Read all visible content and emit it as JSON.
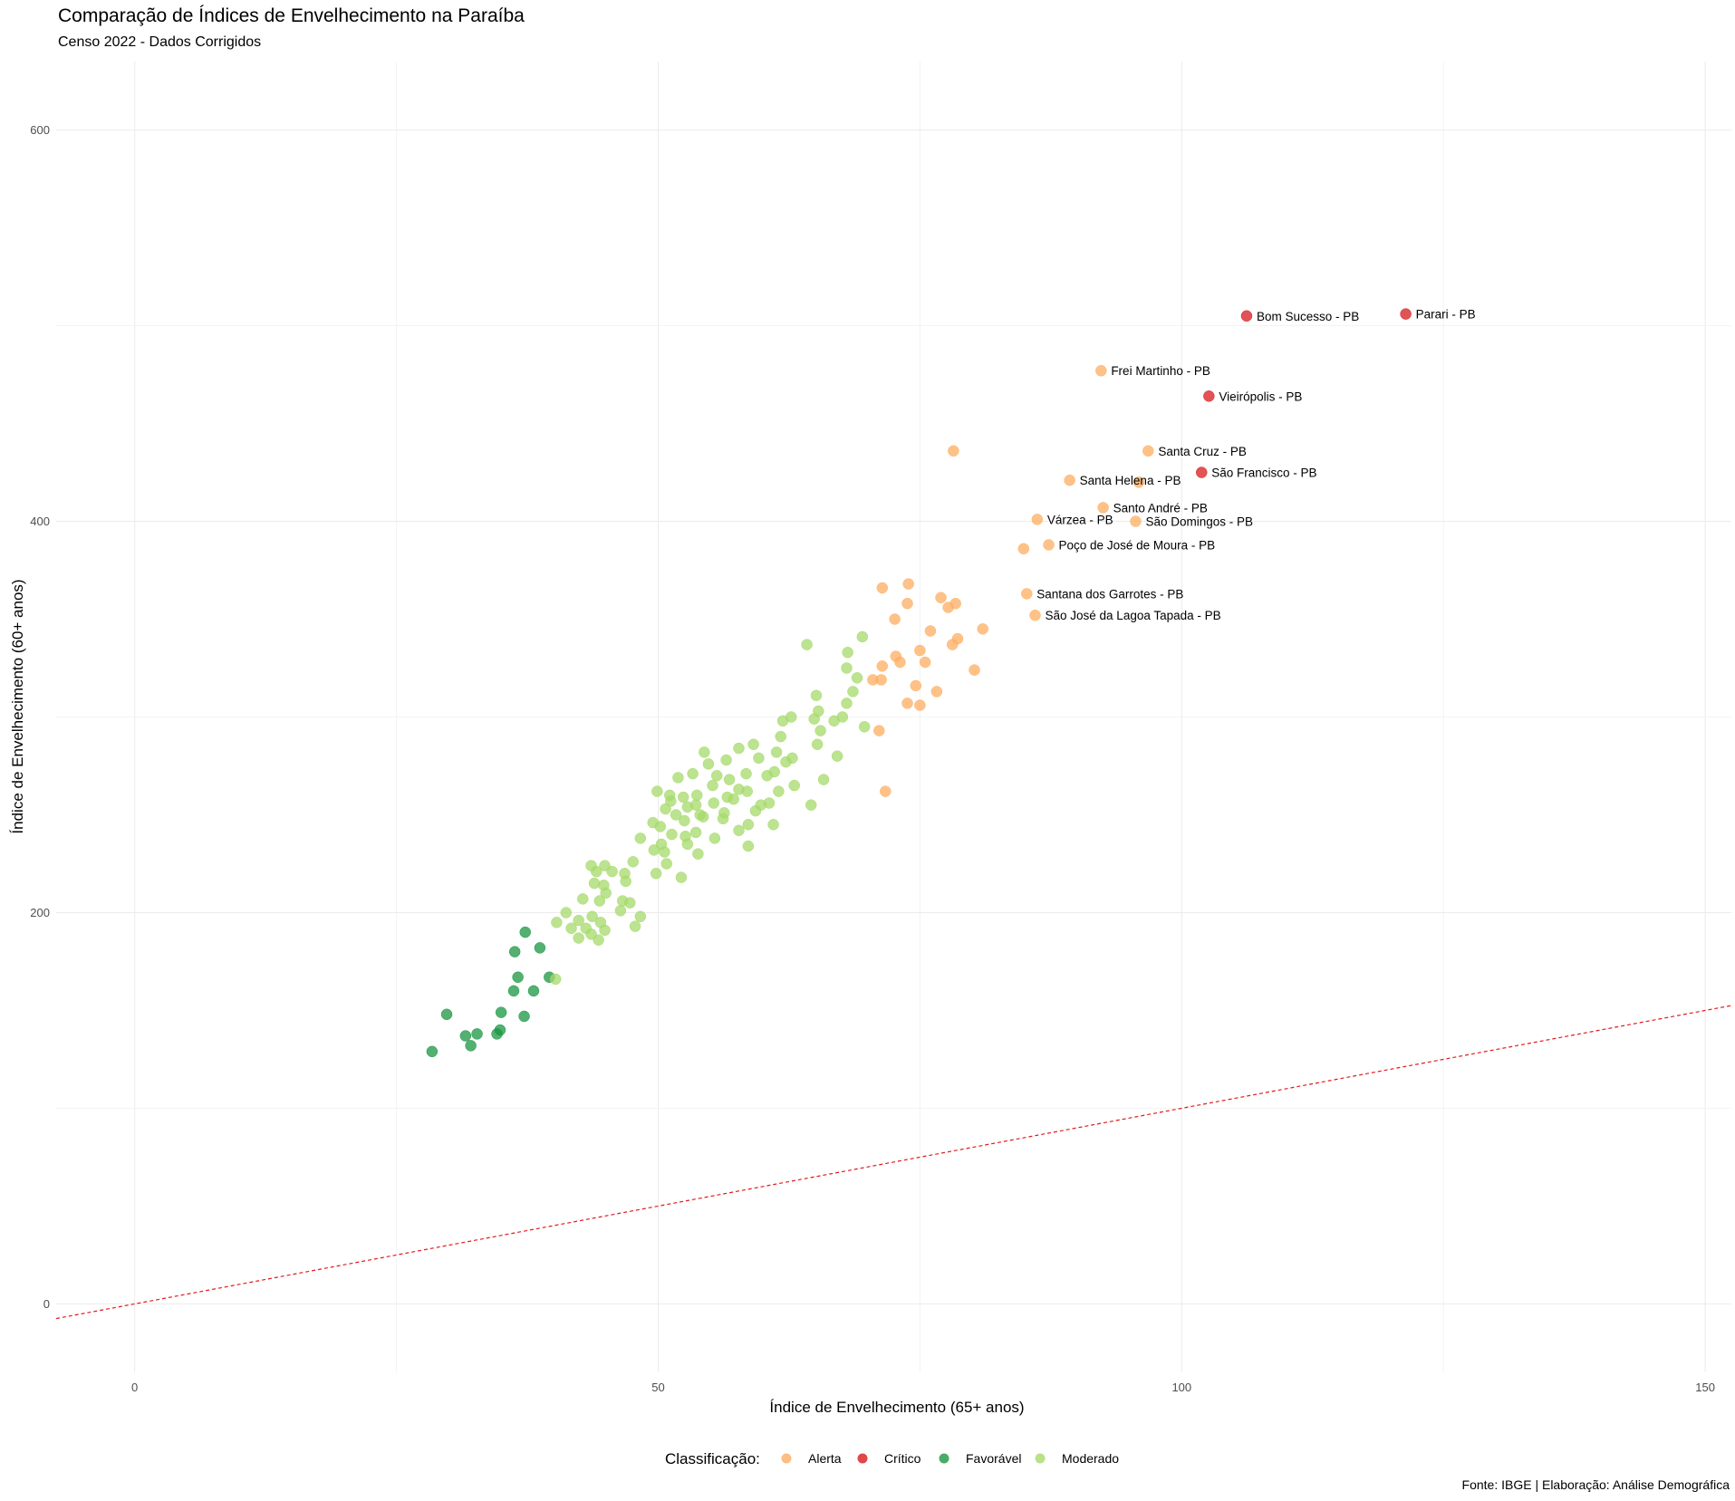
{
  "title": "Comparação de Índices de Envelhecimento na Paraíba",
  "subtitle": "Censo 2022 - Dados Corrigidos",
  "caption": "Fonte: IBGE | Elaboração: Análise Demográfica",
  "chart_data": {
    "type": "scatter",
    "xlabel": "Índice de Envelhecimento (65+ anos)",
    "ylabel": "Índice de Envelhecimento (60+ anos)",
    "xlim": [
      -7.5,
      152.5
    ],
    "ylim": [
      -35,
      635
    ],
    "x_ticks": [
      0,
      50,
      100,
      150
    ],
    "y_ticks": [
      0,
      200,
      400,
      600
    ],
    "grid": true,
    "reference_line": {
      "slope": 1,
      "intercept": 0,
      "color": "#e41a1c",
      "style": "dashed"
    },
    "legend": {
      "title": "Classificação:",
      "position": "bottom",
      "entries": [
        {
          "label": "Alerta",
          "color": "#fdae61"
        },
        {
          "label": "Crítico",
          "color": "#d7191c"
        },
        {
          "label": "Favorável",
          "color": "#1a9641"
        },
        {
          "label": "Moderado",
          "color": "#a6d96a"
        }
      ]
    },
    "series": [
      {
        "name": "Alerta",
        "color": "#fdae61",
        "points": [
          [
            92.3,
            477,
            "Frei Martinho - PB"
          ],
          [
            96.8,
            436,
            "Santa Cruz - PB"
          ],
          [
            89.3,
            421,
            "Santa Helena - PB"
          ],
          [
            92.5,
            407,
            "Santo André - PB"
          ],
          [
            86.2,
            401,
            "Várzea - PB"
          ],
          [
            95.6,
            400,
            "São Domingos - PB"
          ],
          [
            87.3,
            388,
            "Poço de José de Moura - PB"
          ],
          [
            85.2,
            363,
            "Santana dos Garrotes - PB"
          ],
          [
            86.0,
            352,
            "São José da Lagoa Tapada - PB"
          ],
          [
            78.2,
            436,
            ""
          ],
          [
            95.9,
            420,
            ""
          ],
          [
            84.9,
            386,
            ""
          ],
          [
            71.4,
            366
          ],
          [
            73.9,
            368
          ],
          [
            77.0,
            361
          ],
          [
            78.4,
            358
          ],
          [
            77.7,
            356
          ],
          [
            73.8,
            358
          ],
          [
            72.6,
            350
          ],
          [
            76.0,
            344
          ],
          [
            78.6,
            340
          ],
          [
            78.1,
            337
          ],
          [
            81.0,
            345
          ],
          [
            75.0,
            334
          ],
          [
            72.7,
            331
          ],
          [
            73.1,
            328
          ],
          [
            75.5,
            328
          ],
          [
            71.4,
            326
          ],
          [
            71.3,
            319
          ],
          [
            70.5,
            319
          ],
          [
            80.2,
            324
          ],
          [
            74.6,
            316
          ],
          [
            76.6,
            313
          ],
          [
            73.8,
            307
          ],
          [
            75.0,
            306
          ],
          [
            71.1,
            293
          ],
          [
            71.7,
            262
          ]
        ]
      },
      {
        "name": "Crítico",
        "color": "#d7191c",
        "points": [
          [
            106.2,
            505,
            "Bom Sucesso - PB"
          ],
          [
            121.4,
            506,
            "Parari - PB"
          ],
          [
            102.6,
            464,
            "Vieirópolis - PB"
          ],
          [
            101.9,
            425,
            "São Francisco - PB"
          ]
        ]
      },
      {
        "name": "Favorável",
        "color": "#1a9641",
        "points": [
          [
            37.3,
            190
          ],
          [
            36.3,
            180
          ],
          [
            38.7,
            182
          ],
          [
            36.6,
            167
          ],
          [
            39.6,
            167
          ],
          [
            36.2,
            160
          ],
          [
            38.1,
            160
          ],
          [
            35.0,
            149
          ],
          [
            37.2,
            147
          ],
          [
            29.8,
            148
          ],
          [
            34.9,
            140
          ],
          [
            34.6,
            138
          ],
          [
            32.7,
            138
          ],
          [
            31.6,
            137
          ],
          [
            32.1,
            132
          ],
          [
            28.4,
            129
          ]
        ]
      },
      {
        "name": "Moderado",
        "color": "#a6d96a",
        "points": [
          [
            64.2,
            337
          ],
          [
            69.5,
            341
          ],
          [
            68.1,
            333
          ],
          [
            68.0,
            325
          ],
          [
            69.0,
            320
          ],
          [
            68.6,
            313
          ],
          [
            65.1,
            311
          ],
          [
            68.0,
            307
          ],
          [
            65.3,
            303
          ],
          [
            67.6,
            300
          ],
          [
            62.7,
            300
          ],
          [
            61.9,
            298
          ],
          [
            64.9,
            299
          ],
          [
            66.8,
            298
          ],
          [
            69.7,
            295
          ],
          [
            65.5,
            293
          ],
          [
            61.7,
            290
          ],
          [
            65.2,
            286
          ],
          [
            59.1,
            286
          ],
          [
            57.7,
            284
          ],
          [
            61.3,
            282
          ],
          [
            62.8,
            279
          ],
          [
            59.6,
            279
          ],
          [
            62.2,
            277
          ],
          [
            56.5,
            278
          ],
          [
            67.1,
            280
          ],
          [
            54.4,
            282
          ],
          [
            54.8,
            276
          ],
          [
            61.1,
            272
          ],
          [
            60.4,
            270
          ],
          [
            58.4,
            271
          ],
          [
            53.3,
            271
          ],
          [
            55.6,
            270
          ],
          [
            51.9,
            269
          ],
          [
            56.8,
            268
          ],
          [
            65.8,
            268
          ],
          [
            55.2,
            265
          ],
          [
            57.7,
            263
          ],
          [
            63.0,
            265
          ],
          [
            58.5,
            262
          ],
          [
            61.5,
            262
          ],
          [
            53.7,
            260
          ],
          [
            49.9,
            262
          ],
          [
            51.1,
            260
          ],
          [
            52.4,
            259
          ],
          [
            56.6,
            259
          ],
          [
            57.2,
            258
          ],
          [
            51.2,
            257
          ],
          [
            55.3,
            256
          ],
          [
            59.8,
            255
          ],
          [
            53.6,
            255
          ],
          [
            60.6,
            256
          ],
          [
            64.6,
            255
          ],
          [
            52.8,
            254
          ],
          [
            50.7,
            253
          ],
          [
            59.3,
            252
          ],
          [
            56.3,
            251
          ],
          [
            54.0,
            250
          ],
          [
            54.3,
            249
          ],
          [
            51.7,
            250
          ],
          [
            56.2,
            248
          ],
          [
            52.5,
            247
          ],
          [
            49.5,
            246
          ],
          [
            58.6,
            245
          ],
          [
            50.2,
            244
          ],
          [
            61.0,
            245
          ],
          [
            57.7,
            242
          ],
          [
            53.6,
            241
          ],
          [
            51.3,
            240
          ],
          [
            52.6,
            239
          ],
          [
            55.4,
            238
          ],
          [
            48.3,
            238
          ],
          [
            50.3,
            235
          ],
          [
            52.8,
            235
          ],
          [
            58.6,
            234
          ],
          [
            50.6,
            231
          ],
          [
            53.8,
            230
          ],
          [
            49.6,
            232
          ],
          [
            50.8,
            225
          ],
          [
            47.6,
            226
          ],
          [
            49.8,
            220
          ],
          [
            46.8,
            220
          ],
          [
            45.6,
            221
          ],
          [
            52.2,
            218
          ],
          [
            43.6,
            224
          ],
          [
            44.9,
            224
          ],
          [
            44.1,
            221
          ],
          [
            46.9,
            216
          ],
          [
            43.9,
            215
          ],
          [
            44.8,
            214
          ],
          [
            45.0,
            210
          ],
          [
            42.8,
            207
          ],
          [
            44.4,
            206
          ],
          [
            46.6,
            206
          ],
          [
            47.3,
            205
          ],
          [
            41.2,
            200
          ],
          [
            43.7,
            198
          ],
          [
            42.4,
            196
          ],
          [
            44.5,
            195
          ],
          [
            48.3,
            198
          ],
          [
            40.3,
            195
          ],
          [
            41.7,
            192
          ],
          [
            47.8,
            193
          ],
          [
            43.1,
            192
          ],
          [
            44.9,
            191
          ],
          [
            43.6,
            189
          ],
          [
            44.3,
            186
          ],
          [
            42.4,
            187
          ],
          [
            40.2,
            166
          ],
          [
            46.4,
            201
          ]
        ]
      }
    ]
  }
}
